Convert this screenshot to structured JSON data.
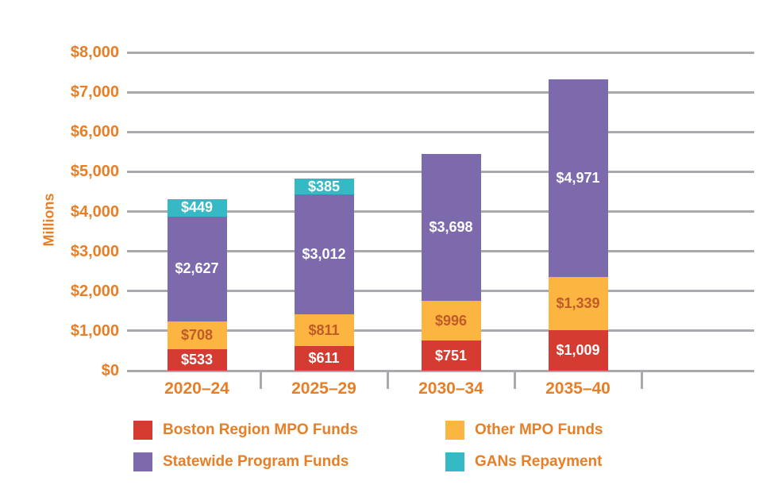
{
  "chart_data": {
    "type": "bar",
    "stacked": true,
    "title": "",
    "xlabel": "",
    "ylabel": "Millions",
    "categories": [
      "2020–24",
      "2025–29",
      "2030–34",
      "2035–40"
    ],
    "series": [
      {
        "name": "Boston Region MPO Funds",
        "color": "#D53B30",
        "label_color": "#FFFFFF",
        "values": [
          533,
          611,
          751,
          1009
        ],
        "labels": [
          "$533",
          "$611",
          "$751",
          "$1,009"
        ]
      },
      {
        "name": "Other MPO Funds",
        "color": "#FBB540",
        "label_color": "#C05A28",
        "values": [
          708,
          811,
          996,
          1339
        ],
        "labels": [
          "$708",
          "$811",
          "$996",
          "$1,339"
        ]
      },
      {
        "name": "Statewide Program Funds",
        "color": "#7D6AAC",
        "label_color": "#FFFFFF",
        "values": [
          2627,
          3012,
          3698,
          4971
        ],
        "labels": [
          "$2,627",
          "$3,012",
          "$3,698",
          "$4,971"
        ]
      },
      {
        "name": "GANs Repayment",
        "color": "#35B9C4",
        "label_color": "#FFFFFF",
        "values": [
          449,
          385,
          0,
          0
        ],
        "labels": [
          "$449",
          "$385",
          "",
          ""
        ]
      }
    ],
    "y_axis": {
      "range": [
        0,
        8000
      ],
      "ticks": [
        {
          "label": "$0",
          "value": 0
        },
        {
          "label": "$1,000",
          "value": 1000
        },
        {
          "label": "$2,000",
          "value": 2000
        },
        {
          "label": "$3,000",
          "value": 3000
        },
        {
          "label": "$4,000",
          "value": 4000
        },
        {
          "label": "$5,000",
          "value": 5000
        },
        {
          "label": "$6,000",
          "value": 6000
        },
        {
          "label": "$7,000",
          "value": 7000
        },
        {
          "label": "$8,000",
          "value": 8000
        }
      ]
    },
    "grid": true,
    "legend_position": "bottom",
    "colors": {
      "axis_text": "#E87E25",
      "gridline": "#A8AAAD",
      "background": "#FFFFFF"
    }
  }
}
